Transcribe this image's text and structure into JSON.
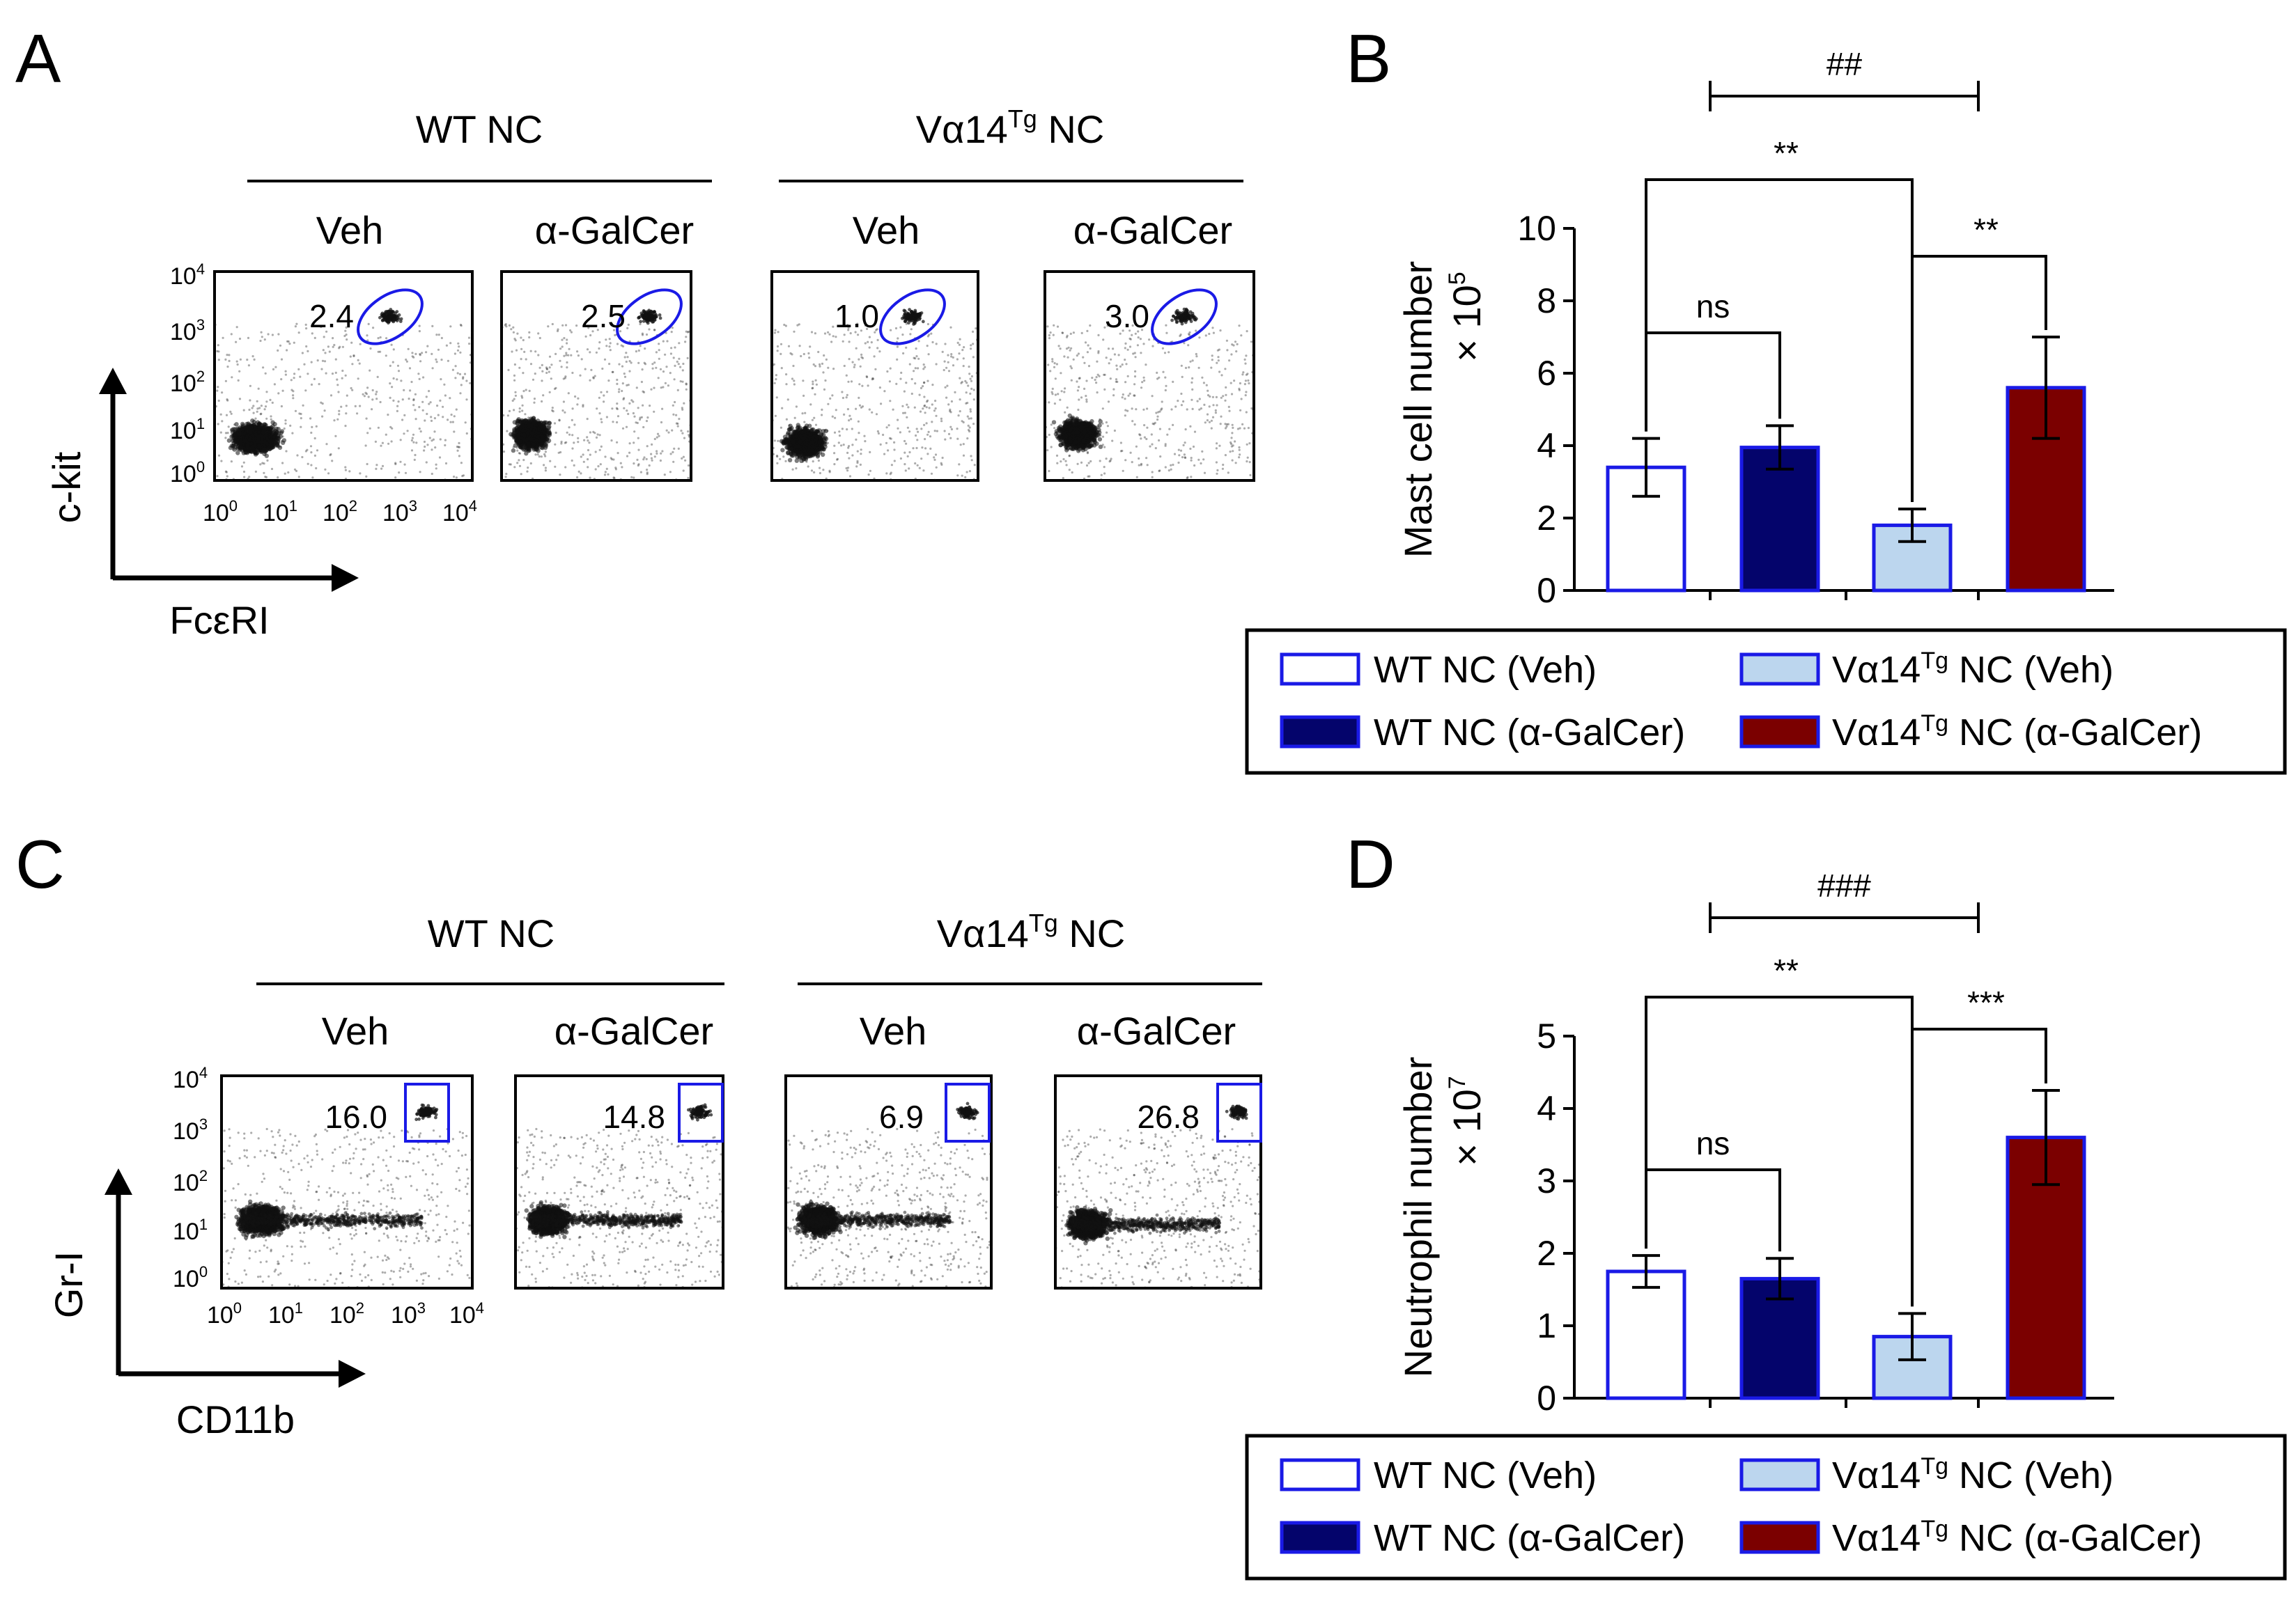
{
  "panels": {
    "A": {
      "letter": "A",
      "group_labels": [
        "WT NC",
        "Vα14",
        "Tg",
        " NC"
      ],
      "treatment_labels": [
        "Veh",
        "α-GalCer",
        "Veh",
        "α-GalCer"
      ],
      "gate_percentages": [
        "2.4",
        "2.5",
        "1.0",
        "3.0"
      ],
      "x_axis_label": "FcεRI",
      "y_axis_label": "c-kit",
      "tick_base": "10",
      "tick_exponents": [
        "0",
        "1",
        "2",
        "3",
        "4"
      ]
    },
    "C": {
      "letter": "C",
      "group_labels": [
        "WT NC",
        "Vα14",
        "Tg",
        " NC"
      ],
      "treatment_labels": [
        "Veh",
        "α-GalCer",
        "Veh",
        "α-GalCer"
      ],
      "gate_percentages": [
        "16.0",
        "14.8",
        "6.9",
        "26.8"
      ],
      "x_axis_label": "CD11b",
      "y_axis_label": "Gr-I",
      "tick_base": "10",
      "tick_exponents": [
        "0",
        "1",
        "2",
        "3",
        "4"
      ]
    }
  },
  "legend": {
    "entries": [
      {
        "pre": "WT NC (Veh)",
        "sup": "",
        "post": "",
        "fill": "#ffffff",
        "stroke": "#1a1ae6"
      },
      {
        "pre": "Vα14",
        "sup": "Tg",
        "post": " NC (Veh)",
        "fill": "#bcd6ee",
        "stroke": "#1a1ae6"
      },
      {
        "pre": "WT NC (α-GalCer)",
        "sup": "",
        "post": "",
        "fill": "#04046b",
        "stroke": "#1a1ae6"
      },
      {
        "pre": "Vα14",
        "sup": "Tg",
        "post": " NC (α-GalCer)",
        "fill": "#7b0000",
        "stroke": "#1a1ae6"
      }
    ]
  },
  "chart_data": [
    {
      "panel": "B",
      "type": "bar",
      "categories": [
        "WT NC (Veh)",
        "WT NC (α-GalCer)",
        "Vα14Tg NC (Veh)",
        "Vα14Tg NC (α-GalCer)"
      ],
      "values": [
        3.4,
        3.95,
        1.8,
        5.6
      ],
      "errors": [
        0.8,
        0.6,
        0.45,
        1.4
      ],
      "colors": [
        "#ffffff",
        "#04046b",
        "#bcd6ee",
        "#7b0000"
      ],
      "ylabel": "Mast cell number",
      "yunit_pre": "× 10",
      "yunit_exp": "5",
      "ylim": [
        0,
        10
      ],
      "yticks": [
        0,
        2,
        4,
        6,
        8,
        10
      ],
      "significance": [
        "##",
        "**",
        "**",
        "ns"
      ]
    },
    {
      "panel": "D",
      "type": "bar",
      "categories": [
        "WT NC (Veh)",
        "WT NC (α-GalCer)",
        "Vα14Tg NC (Veh)",
        "Vα14Tg NC (α-GalCer)"
      ],
      "values": [
        1.75,
        1.65,
        0.85,
        3.6
      ],
      "errors": [
        0.22,
        0.28,
        0.32,
        0.65
      ],
      "colors": [
        "#ffffff",
        "#04046b",
        "#bcd6ee",
        "#7b0000"
      ],
      "ylabel": "Neutrophil number",
      "yunit_pre": "× 10",
      "yunit_exp": "7",
      "ylim": [
        0,
        5
      ],
      "yticks": [
        0,
        1,
        2,
        3,
        4,
        5
      ],
      "significance": [
        "###",
        "**",
        "***",
        "ns"
      ]
    }
  ]
}
